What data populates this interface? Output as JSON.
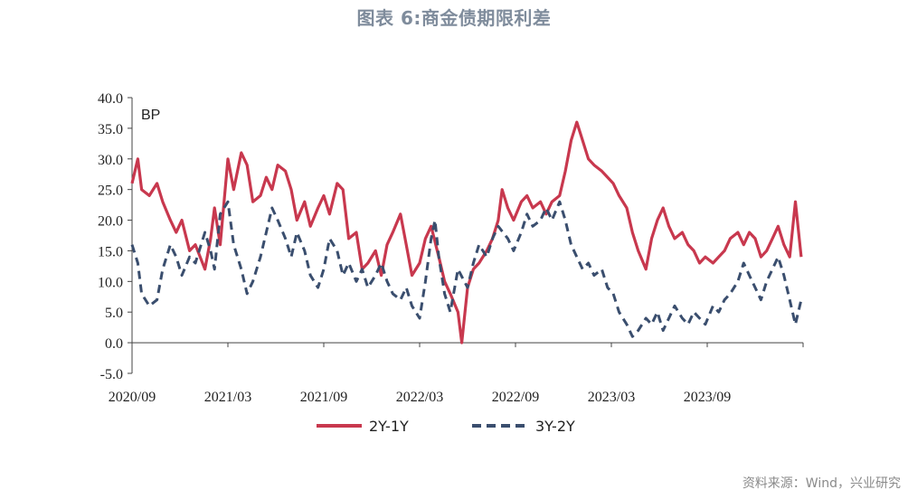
{
  "title": "图表 6:商金债期限利差",
  "source": "资料来源：Wind，兴业研究",
  "colors": {
    "s1": "#c8384e",
    "s2": "#3a4e6e",
    "axis": "#444444"
  },
  "chart_data": {
    "type": "line",
    "ylabel": "BP",
    "ylim": [
      -5,
      40
    ],
    "yticks": [
      "40.0",
      "35.0",
      "30.0",
      "25.0",
      "20.0",
      "15.0",
      "10.0",
      "5.0",
      "0.0",
      "-5.0"
    ],
    "xticks": [
      "2020/09",
      "2021/03",
      "2021/09",
      "2022/03",
      "2022/09",
      "2023/03",
      "2023/09"
    ],
    "xrange": [
      "2020/09",
      "2023/09"
    ],
    "grid": false,
    "legend_position": "bottom",
    "series": [
      {
        "name": "2Y-1Y",
        "style": "solid",
        "points": [
          [
            2020.67,
            26
          ],
          [
            2020.7,
            30
          ],
          [
            2020.72,
            25
          ],
          [
            2020.76,
            24
          ],
          [
            2020.8,
            26
          ],
          [
            2020.83,
            23
          ],
          [
            2020.87,
            20
          ],
          [
            2020.9,
            18
          ],
          [
            2020.93,
            20
          ],
          [
            2020.97,
            15
          ],
          [
            2021.0,
            16
          ],
          [
            2021.05,
            12
          ],
          [
            2021.08,
            17
          ],
          [
            2021.1,
            22
          ],
          [
            2021.13,
            16
          ],
          [
            2021.17,
            30
          ],
          [
            2021.2,
            25
          ],
          [
            2021.24,
            31
          ],
          [
            2021.27,
            29
          ],
          [
            2021.3,
            23
          ],
          [
            2021.34,
            24
          ],
          [
            2021.37,
            27
          ],
          [
            2021.4,
            25
          ],
          [
            2021.43,
            29
          ],
          [
            2021.47,
            28
          ],
          [
            2021.5,
            25
          ],
          [
            2021.53,
            20
          ],
          [
            2021.57,
            23
          ],
          [
            2021.6,
            19
          ],
          [
            2021.64,
            22
          ],
          [
            2021.67,
            24
          ],
          [
            2021.7,
            21
          ],
          [
            2021.74,
            26
          ],
          [
            2021.77,
            25
          ],
          [
            2021.8,
            17
          ],
          [
            2021.84,
            18
          ],
          [
            2021.87,
            12
          ],
          [
            2021.9,
            13
          ],
          [
            2021.94,
            15
          ],
          [
            2021.97,
            11
          ],
          [
            2022.0,
            16
          ],
          [
            2022.03,
            18
          ],
          [
            2022.07,
            21
          ],
          [
            2022.1,
            16
          ],
          [
            2022.13,
            11
          ],
          [
            2022.17,
            13
          ],
          [
            2022.2,
            17
          ],
          [
            2022.23,
            19
          ],
          [
            2022.27,
            14
          ],
          [
            2022.3,
            10
          ],
          [
            2022.33,
            8
          ],
          [
            2022.37,
            5
          ],
          [
            2022.39,
            0
          ],
          [
            2022.42,
            9
          ],
          [
            2022.45,
            12
          ],
          [
            2022.48,
            13
          ],
          [
            2022.52,
            15
          ],
          [
            2022.55,
            17
          ],
          [
            2022.58,
            20
          ],
          [
            2022.6,
            25
          ],
          [
            2022.63,
            22
          ],
          [
            2022.66,
            20
          ],
          [
            2022.7,
            23
          ],
          [
            2022.73,
            24
          ],
          [
            2022.76,
            22
          ],
          [
            2022.8,
            23
          ],
          [
            2022.83,
            21
          ],
          [
            2022.86,
            23
          ],
          [
            2022.9,
            24
          ],
          [
            2022.93,
            28
          ],
          [
            2022.96,
            33
          ],
          [
            2022.99,
            36
          ],
          [
            2023.02,
            33
          ],
          [
            2023.05,
            30
          ],
          [
            2023.08,
            29
          ],
          [
            2023.12,
            28
          ],
          [
            2023.15,
            27
          ],
          [
            2023.18,
            26
          ],
          [
            2023.21,
            24
          ],
          [
            2023.25,
            22
          ],
          [
            2023.28,
            18
          ],
          [
            2023.31,
            15
          ],
          [
            2023.35,
            12
          ],
          [
            2023.38,
            17
          ],
          [
            2023.41,
            20
          ],
          [
            2023.44,
            22
          ],
          [
            2023.47,
            19
          ],
          [
            2023.5,
            17
          ],
          [
            2023.54,
            18
          ],
          [
            2023.57,
            16
          ],
          [
            2023.6,
            15
          ],
          [
            2023.63,
            13
          ],
          [
            2023.66,
            14
          ],
          [
            2023.7,
            13
          ],
          [
            2023.73,
            14
          ],
          [
            2023.76,
            15
          ],
          [
            2023.79,
            17
          ],
          [
            2023.83,
            18
          ],
          [
            2023.86,
            16
          ],
          [
            2023.89,
            18
          ],
          [
            2023.92,
            17
          ],
          [
            2023.95,
            14
          ],
          [
            2023.98,
            15
          ],
          [
            2024.01,
            17
          ],
          [
            2024.04,
            19
          ],
          [
            2024.07,
            16
          ],
          [
            2024.1,
            14
          ],
          [
            2024.13,
            23
          ],
          [
            2024.16,
            14
          ]
        ]
      },
      {
        "name": "3Y-2Y",
        "style": "dashed",
        "points": [
          [
            2020.67,
            16
          ],
          [
            2020.7,
            13
          ],
          [
            2020.72,
            8
          ],
          [
            2020.76,
            6
          ],
          [
            2020.8,
            7
          ],
          [
            2020.83,
            12
          ],
          [
            2020.87,
            16
          ],
          [
            2020.9,
            14
          ],
          [
            2020.93,
            11
          ],
          [
            2020.97,
            14
          ],
          [
            2021.0,
            13
          ],
          [
            2021.05,
            18
          ],
          [
            2021.08,
            15
          ],
          [
            2021.1,
            12
          ],
          [
            2021.13,
            21
          ],
          [
            2021.17,
            23
          ],
          [
            2021.2,
            16
          ],
          [
            2021.24,
            12
          ],
          [
            2021.27,
            8
          ],
          [
            2021.3,
            10
          ],
          [
            2021.34,
            14
          ],
          [
            2021.37,
            18
          ],
          [
            2021.4,
            22
          ],
          [
            2021.43,
            20
          ],
          [
            2021.47,
            17
          ],
          [
            2021.5,
            14
          ],
          [
            2021.53,
            18
          ],
          [
            2021.57,
            15
          ],
          [
            2021.6,
            11
          ],
          [
            2021.64,
            9
          ],
          [
            2021.67,
            12
          ],
          [
            2021.7,
            17
          ],
          [
            2021.74,
            15
          ],
          [
            2021.77,
            11
          ],
          [
            2021.8,
            13
          ],
          [
            2021.84,
            10
          ],
          [
            2021.87,
            12
          ],
          [
            2021.9,
            9
          ],
          [
            2021.94,
            11
          ],
          [
            2021.97,
            13
          ],
          [
            2022.0,
            10
          ],
          [
            2022.03,
            8
          ],
          [
            2022.07,
            7
          ],
          [
            2022.1,
            9
          ],
          [
            2022.13,
            6
          ],
          [
            2022.17,
            4
          ],
          [
            2022.2,
            10
          ],
          [
            2022.23,
            17
          ],
          [
            2022.25,
            20
          ],
          [
            2022.27,
            14
          ],
          [
            2022.3,
            8
          ],
          [
            2022.33,
            5
          ],
          [
            2022.37,
            12
          ],
          [
            2022.42,
            9
          ],
          [
            2022.45,
            13
          ],
          [
            2022.48,
            16
          ],
          [
            2022.52,
            14
          ],
          [
            2022.55,
            17
          ],
          [
            2022.58,
            19
          ],
          [
            2022.63,
            17
          ],
          [
            2022.66,
            15
          ],
          [
            2022.7,
            18
          ],
          [
            2022.73,
            21
          ],
          [
            2022.76,
            19
          ],
          [
            2022.8,
            20
          ],
          [
            2022.83,
            22
          ],
          [
            2022.86,
            20
          ],
          [
            2022.9,
            23
          ],
          [
            2022.93,
            20
          ],
          [
            2022.96,
            16
          ],
          [
            2022.99,
            14
          ],
          [
            2023.02,
            12
          ],
          [
            2023.05,
            13
          ],
          [
            2023.08,
            11
          ],
          [
            2023.12,
            12
          ],
          [
            2023.15,
            9
          ],
          [
            2023.18,
            8
          ],
          [
            2023.21,
            5
          ],
          [
            2023.25,
            3
          ],
          [
            2023.28,
            1
          ],
          [
            2023.31,
            2
          ],
          [
            2023.35,
            4
          ],
          [
            2023.38,
            3
          ],
          [
            2023.41,
            5
          ],
          [
            2023.44,
            2
          ],
          [
            2023.47,
            4
          ],
          [
            2023.5,
            6
          ],
          [
            2023.54,
            4
          ],
          [
            2023.57,
            3
          ],
          [
            2023.6,
            5
          ],
          [
            2023.63,
            4
          ],
          [
            2023.66,
            3
          ],
          [
            2023.7,
            6
          ],
          [
            2023.73,
            5
          ],
          [
            2023.76,
            7
          ],
          [
            2023.79,
            8
          ],
          [
            2023.83,
            10
          ],
          [
            2023.86,
            13
          ],
          [
            2023.89,
            11
          ],
          [
            2023.92,
            9
          ],
          [
            2023.95,
            7
          ],
          [
            2023.98,
            10
          ],
          [
            2024.01,
            12
          ],
          [
            2024.04,
            14
          ],
          [
            2024.07,
            11
          ],
          [
            2024.1,
            7
          ],
          [
            2024.13,
            3
          ],
          [
            2024.16,
            7
          ]
        ]
      }
    ]
  }
}
